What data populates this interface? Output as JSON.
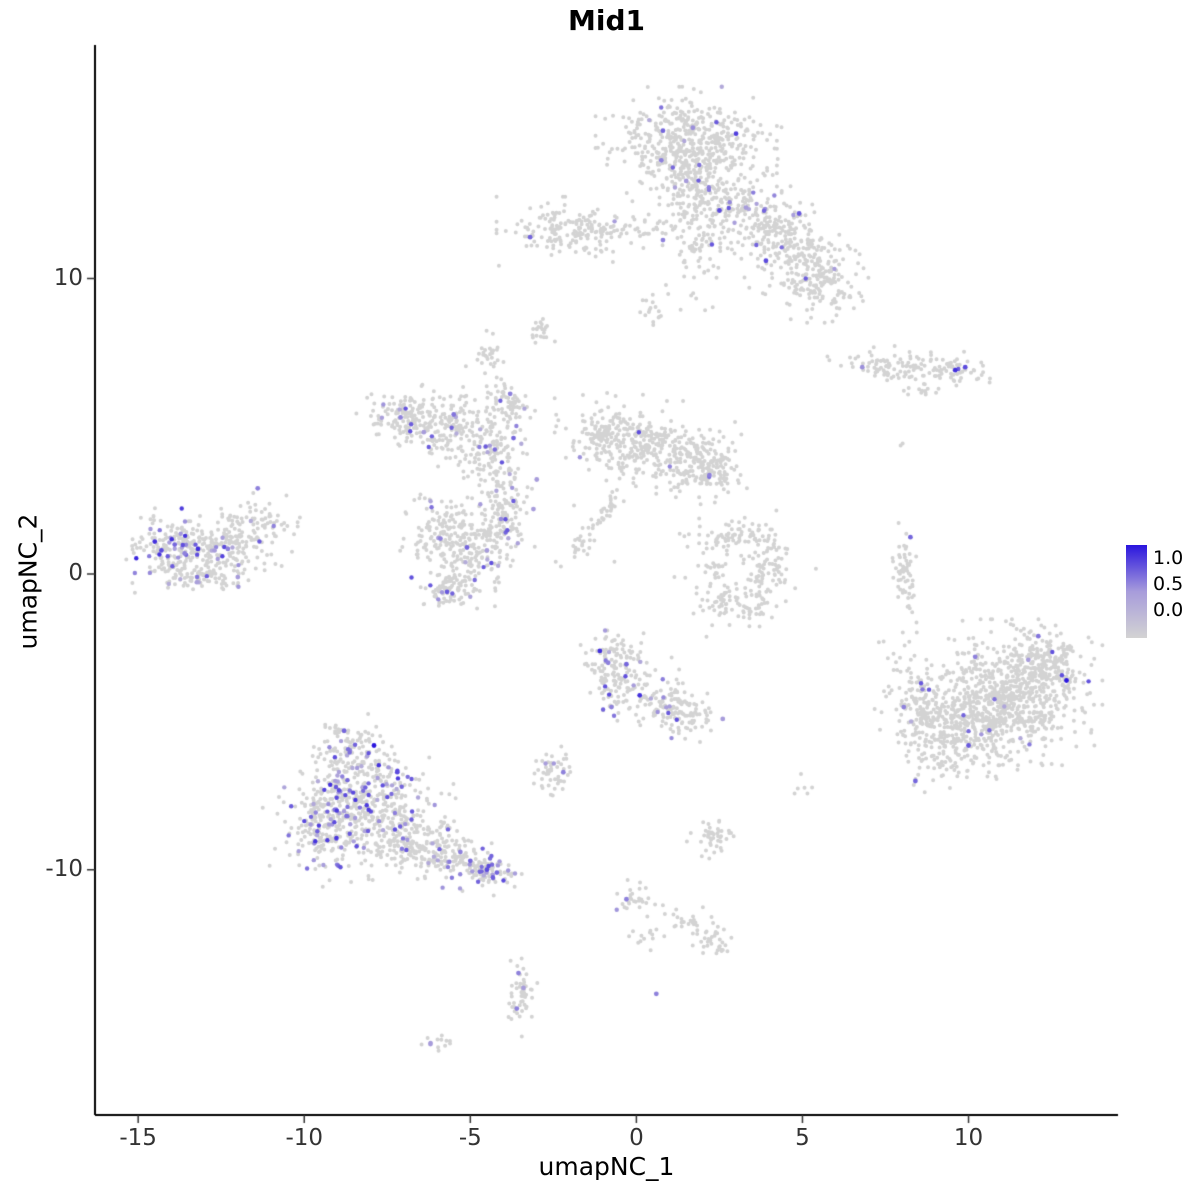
{
  "title": "Mid1",
  "axes": {
    "xlabel": "umapNC_1",
    "ylabel": "umapNC_2",
    "x_tick_values": [
      -15,
      -10,
      -5,
      0,
      5,
      10
    ],
    "x_tick_labels": [
      "-15",
      "-10",
      "-5",
      "0",
      "5",
      "10"
    ],
    "y_tick_values": [
      10,
      0,
      -10
    ],
    "y_tick_labels": [
      "10",
      "0",
      "-10"
    ]
  },
  "legend": {
    "labels": [
      "1.0",
      "0.5",
      "0.0"
    ],
    "values": [
      1.0,
      0.5,
      0.0
    ]
  },
  "chart_data": {
    "type": "scatter",
    "title": "Mid1",
    "xlabel": "umapNC_1",
    "ylabel": "umapNC_2",
    "xlim": [
      -16.3,
      14.5
    ],
    "ylim": [
      -18.3,
      17.9
    ],
    "grid": false,
    "legend_position": "right",
    "color_scale": {
      "low": "#D3D3D3",
      "mid": "#A79CDB",
      "high": "#2A15DE",
      "domain": [
        0.0,
        1.0
      ]
    },
    "point_color_variable": "Mid1 expression (0 = grey, 1 = blue)",
    "clusters": [
      {
        "name": "top-main-a",
        "cx": 1.5,
        "cy": 14.8,
        "sx": 1.05,
        "sy": 0.65,
        "rot": 0,
        "n": 330,
        "expr_frac": 0.012
      },
      {
        "name": "top-main-b",
        "cx": 1.9,
        "cy": 13.6,
        "sx": 0.95,
        "sy": 0.7,
        "rot": 0,
        "n": 300,
        "expr_frac": 0.012
      },
      {
        "name": "top-stem",
        "cx": 1.9,
        "cy": 11.5,
        "sx": 0.5,
        "sy": 1.0,
        "rot": 0,
        "n": 130,
        "expr_frac": 0.02
      },
      {
        "name": "top-right-arm-1",
        "cx": 3.5,
        "cy": 12.1,
        "sx": 0.85,
        "sy": 0.55,
        "rot": -20,
        "n": 160,
        "expr_frac": 0.02
      },
      {
        "name": "top-right-arm-2",
        "cx": 4.8,
        "cy": 10.9,
        "sx": 0.8,
        "sy": 0.65,
        "rot": -25,
        "n": 200,
        "expr_frac": 0.02
      },
      {
        "name": "top-right-arm-3",
        "cx": 5.6,
        "cy": 9.8,
        "sx": 0.6,
        "sy": 0.5,
        "rot": 0,
        "n": 120,
        "expr_frac": 0.015
      },
      {
        "name": "top-left",
        "cx": -2.0,
        "cy": 11.6,
        "sx": 0.85,
        "sy": 0.45,
        "rot": 0,
        "n": 170,
        "expr_frac": 0.012
      },
      {
        "name": "top-left-strand",
        "cx": -0.4,
        "cy": 11.7,
        "sx": 0.55,
        "sy": 0.18,
        "rot": 0,
        "n": 40,
        "expr_frac": 0.02
      },
      {
        "name": "mini-below-topleft",
        "cx": -2.9,
        "cy": 8.2,
        "sx": 0.2,
        "sy": 0.25,
        "rot": 0,
        "n": 22,
        "expr_frac": 0
      },
      {
        "name": "mini-stem-blob",
        "cx": 0.45,
        "cy": 9.0,
        "sx": 0.16,
        "sy": 0.33,
        "rot": 0,
        "n": 18,
        "expr_frac": 0
      },
      {
        "name": "right-bar",
        "cx": 8.2,
        "cy": 7.0,
        "sx": 0.95,
        "sy": 0.26,
        "rot": -5,
        "n": 120,
        "expr_frac": 0.012
      },
      {
        "name": "right-bar-tip",
        "cx": 9.85,
        "cy": 6.95,
        "sx": 0.3,
        "sy": 0.22,
        "rot": 0,
        "n": 30,
        "expr_frac": 0.05
      },
      {
        "name": "right-bar-under",
        "cx": 8.5,
        "cy": 6.2,
        "sx": 0.3,
        "sy": 0.12,
        "rot": 0,
        "n": 12,
        "expr_frac": 0
      },
      {
        "name": "midleft-f1",
        "cx": -7.0,
        "cy": 5.3,
        "sx": 0.55,
        "sy": 0.5,
        "rot": 0,
        "n": 140,
        "expr_frac": 0.035
      },
      {
        "name": "midleft-f2",
        "cx": -5.7,
        "cy": 4.9,
        "sx": 0.5,
        "sy": 0.55,
        "rot": 0,
        "n": 130,
        "expr_frac": 0.035
      },
      {
        "name": "midleft-f3",
        "cx": -4.6,
        "cy": 4.3,
        "sx": 0.4,
        "sy": 0.7,
        "rot": 0,
        "n": 110,
        "expr_frac": 0.03
      },
      {
        "name": "midleft-f4-top",
        "cx": -3.8,
        "cy": 5.8,
        "sx": 0.3,
        "sy": 0.55,
        "rot": 15,
        "n": 70,
        "expr_frac": 0.04
      },
      {
        "name": "midleft-f5-conn",
        "cx": -3.9,
        "cy": 3.0,
        "sx": 0.3,
        "sy": 0.6,
        "rot": 0,
        "n": 60,
        "expr_frac": 0.03
      },
      {
        "name": "mini-upper",
        "cx": -4.5,
        "cy": 7.5,
        "sx": 0.25,
        "sy": 0.3,
        "rot": 0,
        "n": 28,
        "expr_frac": 0
      },
      {
        "name": "midleft-g1",
        "cx": -5.9,
        "cy": 1.3,
        "sx": 0.5,
        "sy": 0.6,
        "rot": 0,
        "n": 130,
        "expr_frac": 0.05
      },
      {
        "name": "midleft-g2",
        "cx": -4.9,
        "cy": 0.6,
        "sx": 0.55,
        "sy": 0.7,
        "rot": 0,
        "n": 150,
        "expr_frac": 0.05
      },
      {
        "name": "midleft-g3",
        "cx": -4.1,
        "cy": 1.8,
        "sx": 0.4,
        "sy": 0.5,
        "rot": 0,
        "n": 90,
        "expr_frac": 0.04
      },
      {
        "name": "midleft-g4",
        "cx": -5.6,
        "cy": -0.6,
        "sx": 0.4,
        "sy": 0.35,
        "rot": 0,
        "n": 70,
        "expr_frac": 0.05
      },
      {
        "name": "center-h1",
        "cx": -0.9,
        "cy": 4.7,
        "sx": 0.6,
        "sy": 0.55,
        "rot": 0,
        "n": 150,
        "expr_frac": 0.008
      },
      {
        "name": "center-h2",
        "cx": 0.3,
        "cy": 4.3,
        "sx": 0.7,
        "sy": 0.6,
        "rot": 0,
        "n": 180,
        "expr_frac": 0.008
      },
      {
        "name": "center-h3",
        "cx": 1.6,
        "cy": 3.9,
        "sx": 0.6,
        "sy": 0.5,
        "rot": 0,
        "n": 150,
        "expr_frac": 0.01
      },
      {
        "name": "center-h4",
        "cx": 2.4,
        "cy": 3.4,
        "sx": 0.4,
        "sy": 0.4,
        "rot": 0,
        "n": 80,
        "expr_frac": 0.012
      },
      {
        "name": "center-streak",
        "cx": -1.2,
        "cy": 1.7,
        "sx": 0.14,
        "sy": 0.85,
        "rot": -35,
        "n": 55,
        "expr_frac": 0.01
      },
      {
        "name": "far-left-1",
        "cx": -13.8,
        "cy": 0.8,
        "sx": 0.7,
        "sy": 0.55,
        "rot": 0,
        "n": 200,
        "expr_frac": 0.11,
        "expr_min": 0.35,
        "expr_max": 0.95
      },
      {
        "name": "far-left-2",
        "cx": -12.5,
        "cy": 1.0,
        "sx": 0.7,
        "sy": 0.5,
        "rot": 0,
        "n": 150,
        "expr_frac": 0.07
      },
      {
        "name": "far-left-tip",
        "cx": -11.3,
        "cy": 1.7,
        "sx": 0.45,
        "sy": 0.4,
        "rot": 0,
        "n": 70,
        "expr_frac": 0.03
      },
      {
        "name": "far-left-bottom",
        "cx": -12.8,
        "cy": -0.1,
        "sx": 0.6,
        "sy": 0.25,
        "rot": 0,
        "n": 60,
        "expr_frac": 0.05
      },
      {
        "name": "cshape-top",
        "cx": 2.9,
        "cy": 1.3,
        "sx": 0.6,
        "sy": 0.25,
        "rot": 10,
        "n": 70,
        "expr_frac": 0
      },
      {
        "name": "cshape-right",
        "cx": 4.0,
        "cy": 0.2,
        "sx": 0.3,
        "sy": 0.75,
        "rot": 0,
        "n": 90,
        "expr_frac": 0
      },
      {
        "name": "cshape-bottom",
        "cx": 2.9,
        "cy": -1.0,
        "sx": 0.6,
        "sy": 0.28,
        "rot": -10,
        "n": 80,
        "expr_frac": 0.005
      },
      {
        "name": "cshape-inner",
        "cx": 2.5,
        "cy": 0.2,
        "sx": 0.3,
        "sy": 0.3,
        "rot": 0,
        "n": 25,
        "expr_frac": 0
      },
      {
        "name": "vert-strip",
        "cx": 8.1,
        "cy": 0.1,
        "sx": 0.17,
        "sy": 0.8,
        "rot": 0,
        "n": 60,
        "expr_frac": 0.01
      },
      {
        "name": "right-large-1",
        "cx": 11.3,
        "cy": -4.0,
        "sx": 1.05,
        "sy": 0.95,
        "rot": 0,
        "n": 700,
        "expr_frac": 0.006
      },
      {
        "name": "right-large-2",
        "cx": 9.8,
        "cy": -5.3,
        "sx": 0.8,
        "sy": 0.8,
        "rot": 0,
        "n": 300,
        "expr_frac": 0.006
      },
      {
        "name": "right-large-tail",
        "cx": 8.5,
        "cy": -4.6,
        "sx": 0.5,
        "sy": 0.95,
        "rot": 10,
        "n": 160,
        "expr_frac": 0.012
      },
      {
        "name": "right-large-top",
        "cx": 12.4,
        "cy": -3.0,
        "sx": 0.55,
        "sy": 0.5,
        "rot": 0,
        "n": 130,
        "expr_frac": 0.01
      },
      {
        "name": "center-bottom-1",
        "cx": -0.6,
        "cy": -3.3,
        "sx": 0.45,
        "sy": 0.65,
        "rot": 0,
        "n": 160,
        "expr_frac": 0.06
      },
      {
        "name": "center-bottom-2",
        "cx": 0.8,
        "cy": -4.3,
        "sx": 0.6,
        "sy": 0.45,
        "rot": -15,
        "n": 120,
        "expr_frac": 0.03
      },
      {
        "name": "center-bottom-3",
        "cx": 1.6,
        "cy": -4.9,
        "sx": 0.3,
        "sy": 0.3,
        "rot": 0,
        "n": 40,
        "expr_frac": 0.02
      },
      {
        "name": "small-left-of-cb",
        "cx": -2.5,
        "cy": -6.7,
        "sx": 0.28,
        "sy": 0.35,
        "rot": 0,
        "n": 50,
        "expr_frac": 0.04
      },
      {
        "name": "bottomleft-1",
        "cx": -9.3,
        "cy": -8.5,
        "sx": 0.75,
        "sy": 0.8,
        "rot": 0,
        "n": 260,
        "expr_frac": 0.16,
        "expr_min": 0.35,
        "expr_max": 0.9
      },
      {
        "name": "bottomleft-2",
        "cx": -8.2,
        "cy": -7.3,
        "sx": 0.8,
        "sy": 0.75,
        "rot": 0,
        "n": 260,
        "expr_frac": 0.16,
        "expr_min": 0.35,
        "expr_max": 0.9
      },
      {
        "name": "bottomleft-3",
        "cx": -7.2,
        "cy": -8.6,
        "sx": 0.8,
        "sy": 0.7,
        "rot": 0,
        "n": 220,
        "expr_frac": 0.09
      },
      {
        "name": "bottomleft-top",
        "cx": -8.7,
        "cy": -5.9,
        "sx": 0.5,
        "sy": 0.45,
        "rot": 0,
        "n": 100,
        "expr_frac": 0.12
      },
      {
        "name": "bottomleft-tail",
        "cx": -5.8,
        "cy": -9.5,
        "sx": 0.75,
        "sy": 0.42,
        "rot": -12,
        "n": 150,
        "expr_frac": 0.1
      },
      {
        "name": "bottomleft-tip",
        "cx": -4.5,
        "cy": -10.1,
        "sx": 0.4,
        "sy": 0.28,
        "rot": -10,
        "n": 80,
        "expr_frac": 0.3
      },
      {
        "name": "scatter-q1",
        "cx": -0.2,
        "cy": -11.0,
        "sx": 0.3,
        "sy": 0.25,
        "rot": 0,
        "n": 25,
        "expr_frac": 0.04
      },
      {
        "name": "scatter-q2",
        "cx": 1.4,
        "cy": -11.7,
        "sx": 0.5,
        "sy": 0.28,
        "rot": -15,
        "n": 30,
        "expr_frac": 0
      },
      {
        "name": "scatter-q3",
        "cx": 2.3,
        "cy": -12.4,
        "sx": 0.3,
        "sy": 0.25,
        "rot": 0,
        "n": 30,
        "expr_frac": 0
      },
      {
        "name": "scatter-q4",
        "cx": 0.3,
        "cy": -12.3,
        "sx": 0.2,
        "sy": 0.2,
        "rot": 0,
        "n": 12,
        "expr_frac": 0
      },
      {
        "name": "small-r",
        "cx": 2.3,
        "cy": -8.9,
        "sx": 0.3,
        "sy": 0.32,
        "rot": 0,
        "n": 45,
        "expr_frac": 0
      },
      {
        "name": "bottom-s",
        "cx": -3.5,
        "cy": -14.2,
        "sx": 0.2,
        "sy": 0.62,
        "rot": 0,
        "n": 50,
        "expr_frac": 0.08
      },
      {
        "name": "tiny-t",
        "cx": -6.0,
        "cy": -15.9,
        "sx": 0.18,
        "sy": 0.13,
        "rot": 0,
        "n": 12,
        "expr_frac": 0.08
      },
      {
        "name": "sparse-center",
        "cx": 0.8,
        "cy": 0.6,
        "sx": 1.8,
        "sy": 1.5,
        "rot": 0,
        "n": 12,
        "expr_frac": 0
      },
      {
        "name": "sparse-right-mid",
        "cx": 5.0,
        "cy": -6.9,
        "sx": 0.25,
        "sy": 0.2,
        "rot": 0,
        "n": 6,
        "expr_frac": 0
      },
      {
        "name": "single-upper-right",
        "cx": 8.0,
        "cy": 4.35,
        "sx": 0.05,
        "sy": 0.05,
        "rot": 0,
        "n": 2,
        "expr_frac": 0
      }
    ],
    "highlight_points": [
      {
        "x": 0.8,
        "y": 15.0,
        "v": 0.7
      },
      {
        "x": 1.7,
        "y": 15.1,
        "v": 0.55
      },
      {
        "x": 3.0,
        "y": 14.9,
        "v": 0.85
      },
      {
        "x": 0.75,
        "y": 14.0,
        "v": 0.6
      },
      {
        "x": 1.5,
        "y": 13.3,
        "v": 0.5
      },
      {
        "x": 2.5,
        "y": 12.3,
        "v": 0.8
      },
      {
        "x": 3.3,
        "y": 12.4,
        "v": 0.5
      },
      {
        "x": 4.9,
        "y": 12.2,
        "v": 0.75
      },
      {
        "x": 3.9,
        "y": 10.6,
        "v": 0.8
      },
      {
        "x": 0.8,
        "y": 11.3,
        "v": 0.6
      },
      {
        "x": -3.2,
        "y": 11.4,
        "v": 0.7
      },
      {
        "x": 9.6,
        "y": 6.9,
        "v": 0.9
      },
      {
        "x": 9.9,
        "y": 7.0,
        "v": 0.8
      },
      {
        "x": 6.8,
        "y": 7.0,
        "v": 0.55
      },
      {
        "x": -7.1,
        "y": 5.3,
        "v": 0.6
      },
      {
        "x": -6.4,
        "y": 4.8,
        "v": 0.5
      },
      {
        "x": -5.5,
        "y": 5.4,
        "v": 0.65
      },
      {
        "x": -3.8,
        "y": 6.1,
        "v": 0.6
      },
      {
        "x": -3.7,
        "y": 4.6,
        "v": 0.7
      },
      {
        "x": -3.1,
        "y": 2.2,
        "v": 0.5
      },
      {
        "x": -5.9,
        "y": 1.2,
        "v": 0.6
      },
      {
        "x": -5.1,
        "y": 0.9,
        "v": 0.7
      },
      {
        "x": -4.5,
        "y": 0.8,
        "v": 0.5
      },
      {
        "x": -5.7,
        "y": -0.6,
        "v": 0.75
      },
      {
        "x": -3.0,
        "y": 3.2,
        "v": 0.5
      },
      {
        "x": 2.2,
        "y": 3.35,
        "v": 0.6
      },
      {
        "x": -14.5,
        "y": 1.1,
        "v": 0.9
      },
      {
        "x": -14.3,
        "y": 0.8,
        "v": 0.8
      },
      {
        "x": -13.9,
        "y": 1.0,
        "v": 0.7
      },
      {
        "x": -13.6,
        "y": 0.7,
        "v": 0.6
      },
      {
        "x": -13.2,
        "y": 0.85,
        "v": 0.9
      },
      {
        "x": -12.7,
        "y": 0.8,
        "v": 0.5
      },
      {
        "x": -12.3,
        "y": 0.85,
        "v": 0.6
      },
      {
        "x": -11.4,
        "y": 2.9,
        "v": 0.6
      },
      {
        "x": -12.0,
        "y": -0.1,
        "v": 0.5
      },
      {
        "x": 8.25,
        "y": 1.25,
        "v": 0.7
      },
      {
        "x": 10.2,
        "y": -2.8,
        "v": 0.6
      },
      {
        "x": 12.1,
        "y": -2.1,
        "v": 0.65
      },
      {
        "x": 12.95,
        "y": -3.6,
        "v": 1.0
      },
      {
        "x": 10.0,
        "y": -5.8,
        "v": 0.75
      },
      {
        "x": 8.4,
        "y": -7.0,
        "v": 0.7
      },
      {
        "x": 8.05,
        "y": -4.5,
        "v": 0.6
      },
      {
        "x": 11.8,
        "y": -2.9,
        "v": 0.5
      },
      {
        "x": -1.1,
        "y": -2.6,
        "v": 0.9
      },
      {
        "x": -0.85,
        "y": -3.0,
        "v": 0.6
      },
      {
        "x": -0.3,
        "y": -3.05,
        "v": 0.7
      },
      {
        "x": 0.1,
        "y": -4.1,
        "v": 0.9
      },
      {
        "x": -0.75,
        "y": -4.5,
        "v": 0.6
      },
      {
        "x": 2.6,
        "y": -4.9,
        "v": 0.5
      },
      {
        "x": -2.2,
        "y": -6.7,
        "v": 0.6
      },
      {
        "x": -7.9,
        "y": -5.8,
        "v": 1.0
      },
      {
        "x": -8.8,
        "y": -5.3,
        "v": 0.7
      },
      {
        "x": -7.2,
        "y": -6.7,
        "v": 0.8
      },
      {
        "x": -5.0,
        "y": -9.7,
        "v": 0.7
      },
      {
        "x": -4.5,
        "y": -10.0,
        "v": 0.8
      },
      {
        "x": -4.2,
        "y": -10.1,
        "v": 0.7
      },
      {
        "x": -5.3,
        "y": -9.4,
        "v": 0.6
      },
      {
        "x": -0.3,
        "y": -11.0,
        "v": 0.6
      },
      {
        "x": -3.55,
        "y": -13.5,
        "v": 0.6
      },
      {
        "x": -3.4,
        "y": -14.0,
        "v": 0.5
      },
      {
        "x": -3.6,
        "y": -14.7,
        "v": 0.6
      },
      {
        "x": -6.2,
        "y": -15.9,
        "v": 0.5
      },
      {
        "x": 0.6,
        "y": -14.2,
        "v": 0.6
      }
    ]
  }
}
